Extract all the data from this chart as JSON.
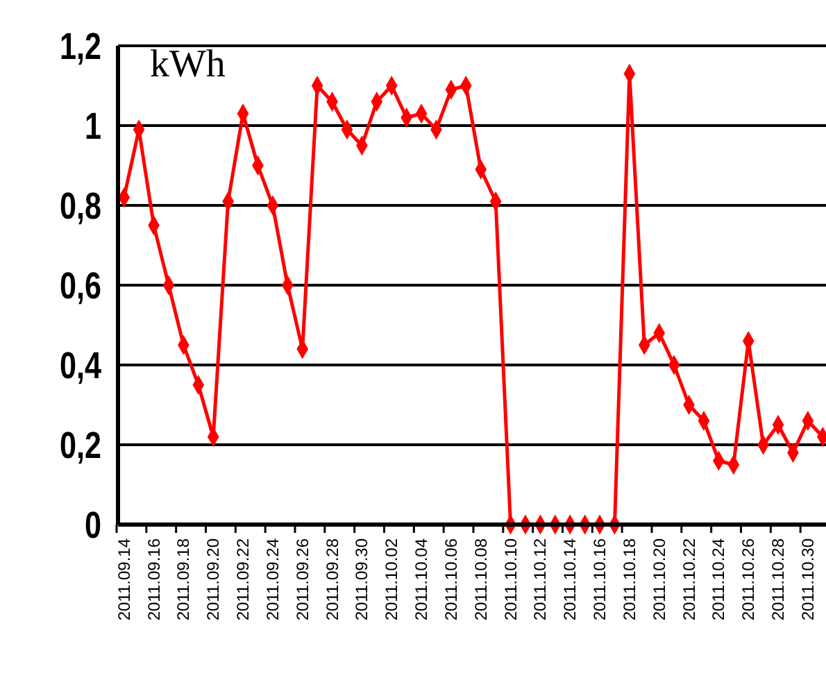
{
  "chart_data": {
    "type": "line",
    "ylabel": "kWh",
    "categories": [
      "2011.09.14",
      null,
      "2011.09.16",
      null,
      "2011.09.18",
      null,
      "2011.09.20",
      null,
      "2011.09.22",
      null,
      "2011.09.24",
      null,
      "2011.09.26",
      null,
      "2011.09.28",
      null,
      "2011.09.30",
      null,
      "2011.10.02",
      null,
      "2011.10.04",
      null,
      "2011.10.06",
      null,
      "2011.10.08",
      null,
      "2011.10.10",
      null,
      "2011.10.12",
      null,
      "2011.10.14",
      null,
      "2011.10.16",
      null,
      "2011.10.18",
      null,
      "2011.10.20",
      null,
      "2011.10.22",
      null,
      "2011.10.24",
      null,
      "2011.10.26",
      null,
      "2011.10.28",
      null,
      "2011.10.30",
      null
    ],
    "series": [
      {
        "color": "#ff0000",
        "values": [
          0.82,
          0.99,
          0.75,
          0.6,
          0.45,
          0.35,
          0.22,
          0.81,
          1.03,
          0.9,
          0.8,
          0.6,
          0.44,
          1.1,
          1.06,
          0.99,
          0.95,
          1.06,
          1.1,
          1.02,
          1.03,
          0.99,
          1.09,
          1.1,
          0.89,
          0.81,
          0,
          0,
          0,
          0,
          0,
          0,
          0,
          0,
          1.13,
          0.45,
          0.48,
          0.4,
          0.3,
          0.26,
          0.16,
          0.15,
          0.46,
          0.2,
          0.25,
          0.18,
          0.26,
          0.22
        ]
      }
    ],
    "ylim": [
      0,
      1.2
    ],
    "yticks": [
      {
        "value": 0,
        "label": "0"
      },
      {
        "value": 0.2,
        "label": "0,2"
      },
      {
        "value": 0.4,
        "label": "0,4"
      },
      {
        "value": 0.6,
        "label": "0,6"
      },
      {
        "value": 0.8,
        "label": "0,8"
      },
      {
        "value": 1,
        "label": "1"
      },
      {
        "value": 1.2,
        "label": "1,2"
      }
    ],
    "grid": "y",
    "marker": "diamond",
    "line_style": "solid"
  }
}
